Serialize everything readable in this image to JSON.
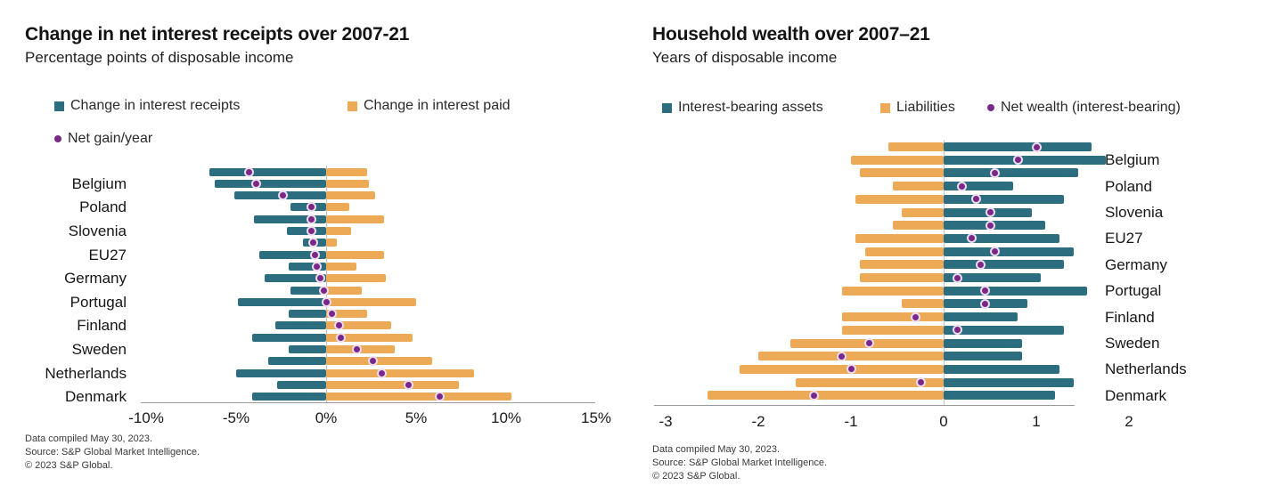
{
  "left": {
    "title": "Change in net interest receipts over 2007-21",
    "subtitle": "Percentage points of disposable income",
    "legend": [
      {
        "label": "Change in interest receipts",
        "marker": "square",
        "color": "#2c6e80"
      },
      {
        "label": "Change in interest paid",
        "marker": "square",
        "color": "#ecaa57"
      },
      {
        "label": "Net gain/year",
        "marker": "dot",
        "color": "#7a2887"
      }
    ],
    "footer": [
      "Data compiled May 30, 2023.",
      "Source: S&P Global Market Intelligence.",
      "© 2023 S&P Global."
    ],
    "chart_data": {
      "type": "bar",
      "orientation": "horizontal-diverging",
      "title": "Change in net interest receipts over 2007-21",
      "ylabel": "Percentage points of disposable income",
      "xlim": [
        -10,
        15
      ],
      "grid": "zero-line-only",
      "legend_position": "top",
      "ticks": [
        {
          "label": "-10%",
          "value": -10
        },
        {
          "label": "-5%",
          "value": -5
        },
        {
          "label": "0%",
          "value": 0
        },
        {
          "label": "5%",
          "value": 5
        },
        {
          "label": "10%",
          "value": 10
        },
        {
          "label": "15%",
          "value": 15
        }
      ],
      "series_meta": {
        "negative": {
          "name": "Change in interest receipts",
          "key": "receipts",
          "color": "#2c6e80"
        },
        "positive": {
          "name": "Change in interest paid",
          "key": "paid",
          "color": "#ecaa57"
        },
        "dot": {
          "name": "Net gain/year",
          "key": "net",
          "color": "#7a2887"
        }
      },
      "rows_per_country": 2,
      "countries": [
        {
          "name": "Belgium",
          "bars": [
            {
              "receipts": -6.5,
              "paid": 2.3,
              "net": -4.3
            },
            {
              "receipts": -6.2,
              "paid": 2.4,
              "net": -3.9
            }
          ]
        },
        {
          "name": "Poland",
          "bars": [
            {
              "receipts": -5.1,
              "paid": 2.7,
              "net": -2.4
            },
            {
              "receipts": -2.0,
              "paid": 1.3,
              "net": -0.8
            }
          ]
        },
        {
          "name": "Slovenia",
          "bars": [
            {
              "receipts": -4.0,
              "paid": 3.2,
              "net": -0.8
            },
            {
              "receipts": -2.2,
              "paid": 1.4,
              "net": -0.8
            }
          ]
        },
        {
          "name": "EU27",
          "bars": [
            {
              "receipts": -1.3,
              "paid": 0.6,
              "net": -0.7
            },
            {
              "receipts": -3.7,
              "paid": 3.2,
              "net": -0.6
            }
          ]
        },
        {
          "name": "Germany",
          "bars": [
            {
              "receipts": -2.1,
              "paid": 1.7,
              "net": -0.5
            },
            {
              "receipts": -3.4,
              "paid": 3.3,
              "net": -0.3
            }
          ]
        },
        {
          "name": "Portugal",
          "bars": [
            {
              "receipts": -2.0,
              "paid": 2.0,
              "net": -0.1
            },
            {
              "receipts": -4.9,
              "paid": 5.0,
              "net": 0.0
            }
          ]
        },
        {
          "name": "Finland",
          "bars": [
            {
              "receipts": -2.1,
              "paid": 2.3,
              "net": 0.3
            },
            {
              "receipts": -2.8,
              "paid": 3.6,
              "net": 0.7
            }
          ]
        },
        {
          "name": "Sweden",
          "bars": [
            {
              "receipts": -4.1,
              "paid": 4.8,
              "net": 0.8
            },
            {
              "receipts": -2.1,
              "paid": 3.8,
              "net": 1.7
            }
          ]
        },
        {
          "name": "Netherlands",
          "bars": [
            {
              "receipts": -3.2,
              "paid": 5.9,
              "net": 2.6
            },
            {
              "receipts": -5.0,
              "paid": 8.2,
              "net": 3.1
            }
          ]
        },
        {
          "name": "Denmark",
          "bars": [
            {
              "receipts": -2.7,
              "paid": 7.4,
              "net": 4.6
            },
            {
              "receipts": -4.1,
              "paid": 10.3,
              "net": 6.3
            }
          ]
        }
      ]
    }
  },
  "right": {
    "title": "Household wealth over 2007–21",
    "subtitle": "Years of disposable income",
    "legend": [
      {
        "label": "Interest-bearing assets",
        "marker": "square",
        "color": "#2c6e80"
      },
      {
        "label": "Liabilities",
        "marker": "square",
        "color": "#ecaa57"
      },
      {
        "label": "Net wealth (interest-bearing)",
        "marker": "dot",
        "color": "#7a2887"
      }
    ],
    "footer": [
      "Data compiled May 30, 2023.",
      "Source: S&P Global Market Intelligence.",
      "© 2023 S&P Global."
    ],
    "chart_data": {
      "type": "bar",
      "orientation": "horizontal-diverging",
      "title": "Household wealth over 2007–21",
      "ylabel": "Years of disposable income",
      "xlim": [
        -3,
        2
      ],
      "grid": "zero-line-only",
      "legend_position": "top",
      "ticks": [
        {
          "label": "-3",
          "value": -3
        },
        {
          "label": "-2",
          "value": -2
        },
        {
          "label": "-1",
          "value": -1
        },
        {
          "label": "0",
          "value": 0
        },
        {
          "label": "1",
          "value": 1
        },
        {
          "label": "2",
          "value": 2
        }
      ],
      "series_meta": {
        "negative": {
          "name": "Liabilities",
          "key": "liabilities",
          "color": "#ecaa57"
        },
        "positive": {
          "name": "Interest-bearing assets",
          "key": "assets",
          "color": "#2c6e80"
        },
        "dot": {
          "name": "Net wealth (interest-bearing)",
          "key": "net",
          "color": "#7a2887"
        }
      },
      "rows_per_country": 2,
      "countries": [
        {
          "name": "Belgium",
          "bars": [
            {
              "liabilities": -0.6,
              "assets": 1.6,
              "net": 1.0
            },
            {
              "liabilities": -1.0,
              "assets": 1.75,
              "net": 0.8
            }
          ]
        },
        {
          "name": "Poland",
          "bars": [
            {
              "liabilities": -0.9,
              "assets": 1.45,
              "net": 0.55
            },
            {
              "liabilities": -0.55,
              "assets": 0.75,
              "net": 0.2
            }
          ]
        },
        {
          "name": "Slovenia",
          "bars": [
            {
              "liabilities": -0.95,
              "assets": 1.3,
              "net": 0.35
            },
            {
              "liabilities": -0.45,
              "assets": 0.95,
              "net": 0.5
            }
          ]
        },
        {
          "name": "EU27",
          "bars": [
            {
              "liabilities": -0.55,
              "assets": 1.1,
              "net": 0.5
            },
            {
              "liabilities": -0.95,
              "assets": 1.25,
              "net": 0.3
            }
          ]
        },
        {
          "name": "Germany",
          "bars": [
            {
              "liabilities": -0.85,
              "assets": 1.4,
              "net": 0.55
            },
            {
              "liabilities": -0.9,
              "assets": 1.3,
              "net": 0.4
            }
          ]
        },
        {
          "name": "Portugal",
          "bars": [
            {
              "liabilities": -0.9,
              "assets": 1.05,
              "net": 0.15
            },
            {
              "liabilities": -1.1,
              "assets": 1.55,
              "net": 0.45
            }
          ]
        },
        {
          "name": "Finland",
          "bars": [
            {
              "liabilities": -0.45,
              "assets": 0.9,
              "net": 0.45
            },
            {
              "liabilities": -1.1,
              "assets": 0.8,
              "net": -0.3
            }
          ]
        },
        {
          "name": "Sweden",
          "bars": [
            {
              "liabilities": -1.1,
              "assets": 1.3,
              "net": 0.15
            },
            {
              "liabilities": -1.65,
              "assets": 0.85,
              "net": -0.8
            }
          ]
        },
        {
          "name": "Netherlands",
          "bars": [
            {
              "liabilities": -2.0,
              "assets": 0.85,
              "net": -1.1
            },
            {
              "liabilities": -2.2,
              "assets": 1.25,
              "net": -1.0
            }
          ]
        },
        {
          "name": "Denmark",
          "bars": [
            {
              "liabilities": -1.6,
              "assets": 1.4,
              "net": -0.25
            },
            {
              "liabilities": -2.55,
              "assets": 1.2,
              "net": -1.4
            }
          ]
        }
      ]
    }
  }
}
